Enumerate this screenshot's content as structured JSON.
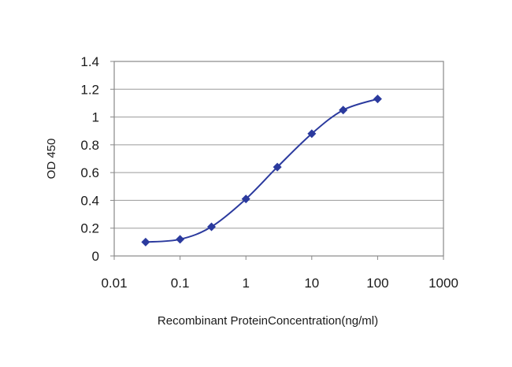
{
  "chart_data": {
    "type": "line",
    "title": "",
    "xlabel": "Recombinant ProteinConcentration(ng/ml)",
    "ylabel": "OD 450",
    "x_scale": "log",
    "xlim": [
      0.01,
      1000
    ],
    "ylim": [
      0,
      1.4
    ],
    "x_ticks": [
      "0.01",
      "0.1",
      "1",
      "10",
      "100",
      "1000"
    ],
    "y_ticks": [
      "0",
      "0.2",
      "0.4",
      "0.6",
      "0.8",
      "1",
      "1.2",
      "1.4"
    ],
    "grid": "horizontal",
    "legend": "none",
    "series": [
      {
        "color": "#2b3a9e",
        "marker": "diamond",
        "x": [
          0.03,
          0.1,
          0.3,
          1,
          3,
          10,
          30,
          100
        ],
        "y": [
          0.1,
          0.12,
          0.21,
          0.41,
          0.64,
          0.88,
          1.05,
          1.13
        ]
      }
    ]
  }
}
